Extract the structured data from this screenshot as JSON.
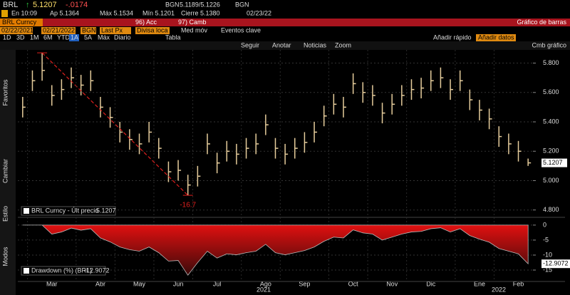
{
  "header": {
    "ticker": "BRL",
    "last": "5.1207",
    "change": "-.0174",
    "bid_src": "BGN",
    "bid_ask": "5.1189/5.1226",
    "ask_src": "BGN",
    "time": "En 10:09",
    "open": "Ap 5.1364",
    "high": "Máx 5.1534",
    "low": "Mín 5.1201",
    "close": "Cierre 5.1380",
    "date": "02/23/22"
  },
  "menu": {
    "security": "BRL Curncy",
    "actions": "96) Acc",
    "camb": "97) Camb",
    "view": "Gráfico de barras"
  },
  "settings": {
    "start": "02/22/2021",
    "end": "02/21/2022",
    "source": "BGN",
    "field": "Last Px",
    "currency": "Divisa loca",
    "mov": "Med móv",
    "events": "Eventos clave"
  },
  "periods": [
    "1D",
    "3D",
    "1M",
    "6M",
    "YTD",
    "1A",
    "5A",
    "Máx"
  ],
  "frequency": "Diario",
  "table": "Tabla",
  "quick_add": "Añadir rápido",
  "add_data": "Añadir datos",
  "toolbar": [
    "Seguir",
    "Anotar",
    "Noticias",
    "Zoom"
  ],
  "chart_change": "Cmb gráfico",
  "sidebar": [
    "Favoritos",
    "Cambiar",
    "Estilo",
    "Modos"
  ],
  "year_labels": [
    "2021",
    "2022"
  ],
  "chart_data": [
    {
      "type": "ohlc",
      "categories": [
        null,
        "Mar",
        null,
        null,
        null,
        null,
        "Abr",
        null,
        null,
        null,
        "May",
        null,
        null,
        null,
        "Jun",
        null,
        null,
        null,
        "Jul",
        null,
        null,
        null,
        null,
        "Ago",
        null,
        null,
        null,
        "Sep",
        null,
        null,
        null,
        null,
        "Oct",
        null,
        null,
        null,
        "Nov",
        null,
        null,
        null,
        "Dic",
        null,
        null,
        null,
        null,
        "Ene",
        null,
        null,
        null,
        "Feb",
        null,
        null,
        null
      ],
      "series": [
        {
          "name": "BRL Curncy - Últ precio",
          "color": "#e6cd9c",
          "high": [
            5.57,
            5.75,
            5.87,
            5.65,
            5.69,
            5.77,
            5.72,
            5.75,
            5.57,
            5.5,
            5.4,
            5.35,
            5.32,
            5.4,
            5.29,
            5.13,
            5.14,
            5.04,
            5.1,
            5.32,
            5.19,
            5.27,
            5.25,
            5.29,
            5.32,
            5.45,
            5.29,
            5.25,
            5.29,
            5.33,
            5.4,
            5.51,
            5.59,
            5.57,
            5.73,
            5.67,
            5.65,
            5.53,
            5.59,
            5.65,
            5.69,
            5.7,
            5.75,
            5.77,
            5.69,
            5.75,
            5.62,
            5.55,
            5.49,
            5.37,
            5.32,
            5.27,
            5.15
          ],
          "low": [
            5.43,
            5.61,
            5.68,
            5.51,
            5.55,
            5.63,
            5.58,
            5.61,
            5.43,
            5.36,
            5.26,
            5.21,
            5.18,
            5.26,
            5.15,
            4.99,
            5.0,
            4.9,
            4.96,
            5.18,
            5.05,
            5.13,
            5.11,
            5.15,
            5.18,
            5.31,
            5.15,
            5.11,
            5.15,
            5.19,
            5.26,
            5.37,
            5.45,
            5.43,
            5.59,
            5.53,
            5.51,
            5.39,
            5.45,
            5.51,
            5.55,
            5.56,
            5.61,
            5.63,
            5.55,
            5.61,
            5.48,
            5.41,
            5.35,
            5.23,
            5.18,
            5.13,
            5.1
          ],
          "values": [
            5.5,
            5.68,
            5.75,
            5.58,
            5.62,
            5.7,
            5.65,
            5.68,
            5.5,
            5.43,
            5.33,
            5.28,
            5.25,
            5.33,
            5.22,
            5.06,
            5.07,
            4.97,
            5.03,
            5.25,
            5.12,
            5.2,
            5.18,
            5.22,
            5.25,
            5.38,
            5.22,
            5.18,
            5.22,
            5.26,
            5.33,
            5.44,
            5.52,
            5.5,
            5.66,
            5.6,
            5.58,
            5.46,
            5.52,
            5.58,
            5.62,
            5.63,
            5.68,
            5.7,
            5.62,
            5.68,
            5.55,
            5.48,
            5.42,
            5.3,
            5.25,
            5.2,
            5.1207
          ]
        }
      ],
      "ylim": [
        4.75,
        5.89
      ],
      "yticks": [
        {
          "value": 4.8,
          "label": "4.800"
        },
        {
          "value": 5.0,
          "label": "5.000"
        },
        {
          "value": 5.2,
          "label": "5.200"
        },
        {
          "value": 5.4,
          "label": "5.400"
        },
        {
          "value": 5.6,
          "label": "5.600"
        },
        {
          "value": 5.8,
          "label": "5.800"
        }
      ],
      "grid": true,
      "annotation": {
        "text": "-16.7",
        "color": "#e0201e"
      }
    },
    {
      "type": "area",
      "series": [
        {
          "name": "Drawdown (%) (BRL)",
          "color": "#e01010",
          "values": [
            0,
            0,
            0,
            -3,
            -2.3,
            -1,
            -1.7,
            -1.2,
            -4.3,
            -5.6,
            -7.3,
            -8.2,
            -8.7,
            -7.3,
            -9.2,
            -12,
            -11.8,
            -16.7,
            -12.5,
            -8.7,
            -11,
            -9.6,
            -9.9,
            -9.2,
            -8.7,
            -6.4,
            -9.2,
            -9.9,
            -9.2,
            -8.5,
            -7.3,
            -5.4,
            -4,
            -4.3,
            -1.6,
            -2.6,
            -3,
            -5,
            -4,
            -3,
            -2.3,
            -2.1,
            -1.2,
            -0.9,
            -2.3,
            -1.2,
            -3.5,
            -4.7,
            -5.7,
            -7.8,
            -8.7,
            -9.6,
            -12.9072
          ]
        }
      ],
      "ylim": [
        -18.8,
        1.4
      ],
      "yticks": [
        0,
        -5,
        -10,
        -15
      ],
      "grid": true
    }
  ]
}
